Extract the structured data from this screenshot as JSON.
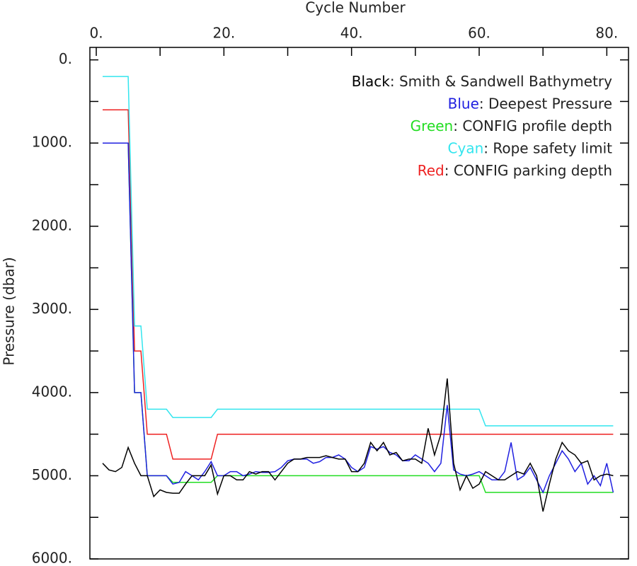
{
  "chart_data": {
    "type": "line",
    "xlabel": "Cycle Number",
    "ylabel": "Pressure (dbar)",
    "x": [
      1,
      2,
      3,
      4,
      5,
      6,
      7,
      8,
      9,
      10,
      11,
      12,
      13,
      14,
      15,
      16,
      17,
      18,
      19,
      20,
      21,
      22,
      23,
      24,
      25,
      26,
      27,
      28,
      29,
      30,
      31,
      32,
      33,
      34,
      35,
      36,
      37,
      38,
      39,
      40,
      41,
      42,
      43,
      44,
      45,
      46,
      47,
      48,
      49,
      50,
      51,
      52,
      53,
      54,
      55,
      56,
      57,
      58,
      59,
      60,
      61,
      62,
      63,
      64,
      65,
      66,
      67,
      68,
      69,
      70,
      71,
      72,
      73,
      74,
      75,
      76,
      77,
      78,
      79,
      80,
      81
    ],
    "series": [
      {
        "color_name": "Black",
        "name": ": Smith & Sandwell Bathymetry",
        "color": "#000000",
        "values": [
          4850,
          4930,
          4950,
          4900,
          4660,
          4850,
          5000,
          5000,
          5250,
          5170,
          5200,
          5210,
          5210,
          5100,
          5000,
          5000,
          5000,
          4870,
          5220,
          5000,
          5000,
          5050,
          5050,
          4950,
          4980,
          4950,
          4950,
          5050,
          4950,
          4850,
          4800,
          4800,
          4780,
          4780,
          4780,
          4760,
          4780,
          4800,
          4800,
          4950,
          4950,
          4850,
          4600,
          4700,
          4600,
          4750,
          4720,
          4820,
          4800,
          4800,
          4850,
          4430,
          4750,
          4500,
          3830,
          4850,
          5170,
          5000,
          5150,
          5100,
          4950,
          5000,
          5050,
          5050,
          5000,
          4950,
          4980,
          4850,
          5000,
          5430,
          5100,
          4800,
          4600,
          4700,
          4750,
          4850,
          4820,
          5050,
          5000,
          4980,
          5000
        ]
      },
      {
        "color_name": "Blue",
        "name": ": Deepest Pressure",
        "color": "#2020e0",
        "values": [
          1000,
          1000,
          1000,
          1000,
          1000,
          4000,
          4000,
          5000,
          5000,
          5000,
          5000,
          5100,
          5080,
          4950,
          5000,
          5050,
          4950,
          4830,
          5000,
          5000,
          4950,
          4950,
          5000,
          4980,
          4950,
          4960,
          4960,
          4950,
          4900,
          4820,
          4800,
          4800,
          4800,
          4850,
          4830,
          4780,
          4780,
          4750,
          4800,
          4900,
          4950,
          4900,
          4650,
          4680,
          4650,
          4720,
          4750,
          4820,
          4820,
          4750,
          4800,
          4850,
          4950,
          4850,
          4150,
          4930,
          4980,
          5000,
          4980,
          4950,
          5000,
          5050,
          5050,
          4950,
          4600,
          5050,
          5000,
          4900,
          5050,
          5200,
          5000,
          4850,
          4700,
          4800,
          4950,
          4850,
          5100,
          5000,
          5120,
          4850,
          5200
        ]
      },
      {
        "color_name": "Green",
        "name": ": CONFIG profile depth",
        "color": "#22dd22",
        "values": [
          1000,
          1000,
          1000,
          1000,
          1000,
          4000,
          4000,
          5000,
          5000,
          5000,
          5000,
          5080,
          5080,
          5080,
          5080,
          5080,
          5080,
          5080,
          5000,
          5000,
          5000,
          5000,
          5000,
          5000,
          5000,
          5000,
          5000,
          5000,
          5000,
          5000,
          5000,
          5000,
          5000,
          5000,
          5000,
          5000,
          5000,
          5000,
          5000,
          5000,
          5000,
          5000,
          5000,
          5000,
          5000,
          5000,
          5000,
          5000,
          5000,
          5000,
          5000,
          5000,
          5000,
          5000,
          5000,
          5000,
          5000,
          5000,
          5000,
          5000,
          5200,
          5200,
          5200,
          5200,
          5200,
          5200,
          5200,
          5200,
          5200,
          5200,
          5200,
          5200,
          5200,
          5200,
          5200,
          5200,
          5200,
          5200,
          5200,
          5200,
          5200
        ]
      },
      {
        "color_name": "Cyan",
        "name": ": Rope safety limit",
        "color": "#33e5ee",
        "values": [
          200,
          200,
          200,
          200,
          200,
          3200,
          3200,
          4200,
          4200,
          4200,
          4200,
          4300,
          4300,
          4300,
          4300,
          4300,
          4300,
          4300,
          4200,
          4200,
          4200,
          4200,
          4200,
          4200,
          4200,
          4200,
          4200,
          4200,
          4200,
          4200,
          4200,
          4200,
          4200,
          4200,
          4200,
          4200,
          4200,
          4200,
          4200,
          4200,
          4200,
          4200,
          4200,
          4200,
          4200,
          4200,
          4200,
          4200,
          4200,
          4200,
          4200,
          4200,
          4200,
          4200,
          4200,
          4200,
          4200,
          4200,
          4200,
          4200,
          4400,
          4400,
          4400,
          4400,
          4400,
          4400,
          4400,
          4400,
          4400,
          4400,
          4400,
          4400,
          4400,
          4400,
          4400,
          4400,
          4400,
          4400,
          4400,
          4400,
          4400
        ]
      },
      {
        "color_name": "Red",
        "name": ": CONFIG parking depth",
        "color": "#ee2222",
        "values": [
          600,
          600,
          600,
          600,
          600,
          3500,
          3500,
          4500,
          4500,
          4500,
          4500,
          4800,
          4800,
          4800,
          4800,
          4800,
          4800,
          4800,
          4500,
          4500,
          4500,
          4500,
          4500,
          4500,
          4500,
          4500,
          4500,
          4500,
          4500,
          4500,
          4500,
          4500,
          4500,
          4500,
          4500,
          4500,
          4500,
          4500,
          4500,
          4500,
          4500,
          4500,
          4500,
          4500,
          4500,
          4500,
          4500,
          4500,
          4500,
          4500,
          4500,
          4500,
          4500,
          4500,
          4500,
          4500,
          4500,
          4500,
          4500,
          4500,
          4500,
          4500,
          4500,
          4500,
          4500,
          4500,
          4500,
          4500,
          4500,
          4500,
          4500,
          4500,
          4500,
          4500,
          4500,
          4500,
          4500,
          4500,
          4500,
          4500,
          4500
        ]
      }
    ],
    "xlim": [
      -1,
      83.4
    ],
    "ylim": [
      -150,
      6000
    ],
    "y_inverted": true,
    "xticks": [
      {
        "value": 0,
        "label": "0."
      },
      {
        "value": 20,
        "label": "20."
      },
      {
        "value": 40,
        "label": "40."
      },
      {
        "value": 60,
        "label": "60."
      },
      {
        "value": 80,
        "label": "80."
      }
    ],
    "yticks": [
      {
        "value": 0,
        "label": "0."
      },
      {
        "value": 1000,
        "label": "1000."
      },
      {
        "value": 2000,
        "label": "2000."
      },
      {
        "value": 3000,
        "label": "3000."
      },
      {
        "value": 4000,
        "label": "4000."
      },
      {
        "value": 5000,
        "label": "5000."
      },
      {
        "value": 6000,
        "label": "6000."
      }
    ],
    "legend": "upper right"
  }
}
